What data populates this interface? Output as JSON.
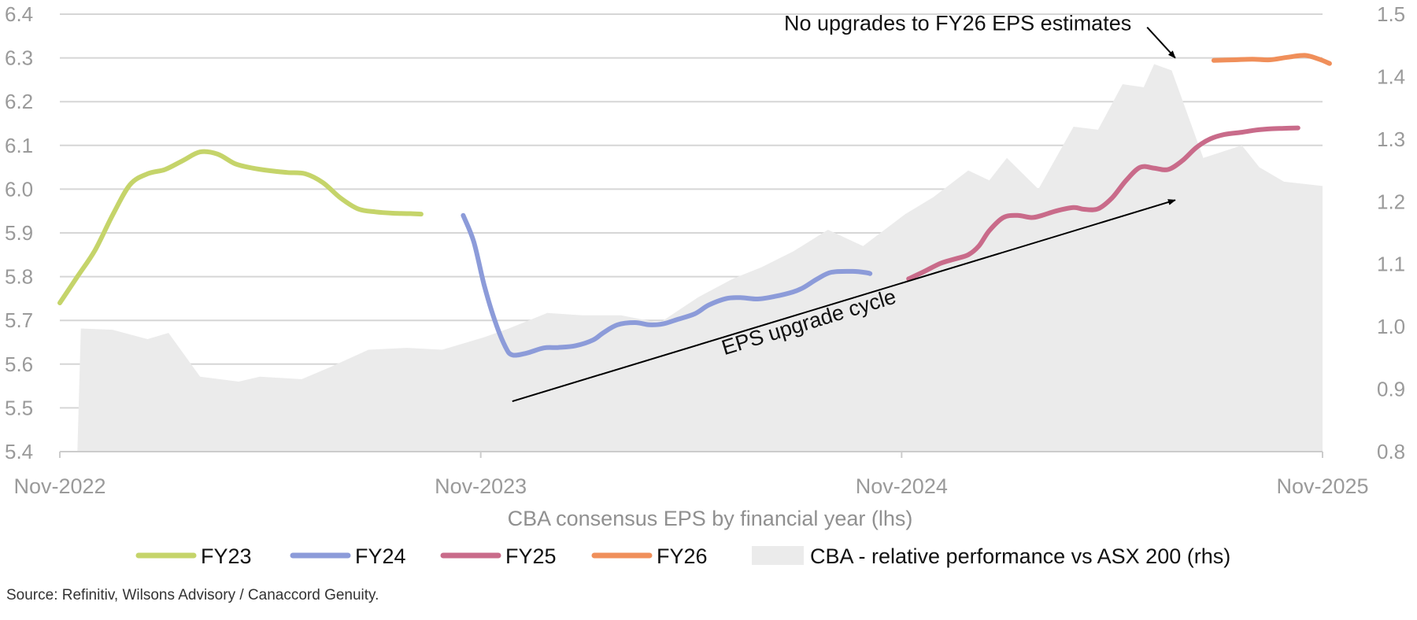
{
  "chart_data": {
    "type": "line",
    "title": "",
    "xlabel": "CBA consensus EPS by financial year (lhs)",
    "x_tick_labels": [
      "Nov-2022",
      "Nov-2023",
      "Nov-2024",
      "Nov-2025"
    ],
    "x_range_months": [
      0,
      36
    ],
    "y_left": {
      "range": [
        5.4,
        6.4
      ],
      "ticks": [
        "5.4",
        "5.5",
        "5.6",
        "5.7",
        "5.8",
        "5.9",
        "6.0",
        "6.1",
        "6.2",
        "6.3",
        "6.4"
      ]
    },
    "y_right": {
      "range": [
        0.8,
        1.5
      ],
      "ticks": [
        "0.8",
        "0.9",
        "1.0",
        "1.1",
        "1.2",
        "1.3",
        "1.4",
        "1.5"
      ]
    },
    "grid": true,
    "legend_position": "bottom",
    "series": [
      {
        "name": "FY23",
        "axis": "left",
        "color": "#c5d46a",
        "x": [
          0,
          0.5,
          1.0,
          1.5,
          2.0,
          2.5,
          3.0,
          3.5,
          4.0,
          4.5,
          5.0,
          5.5,
          6.0,
          6.5,
          7.0,
          7.5,
          8.0,
          8.5,
          9.0,
          9.5,
          10.0,
          10.3
        ],
        "values": [
          5.74,
          5.8,
          5.86,
          5.94,
          6.01,
          6.035,
          6.045,
          6.065,
          6.085,
          6.08,
          6.058,
          6.048,
          6.042,
          6.038,
          6.035,
          6.015,
          5.98,
          5.955,
          5.948,
          5.945,
          5.944,
          5.943
        ]
      },
      {
        "name": "FY24",
        "axis": "left",
        "color": "#8c9bd9",
        "x": [
          11.5,
          11.8,
          12.1,
          12.4,
          12.7,
          12.9,
          13.3,
          13.8,
          14.2,
          14.7,
          15.2,
          15.5,
          15.9,
          16.4,
          16.8,
          17.2,
          17.6,
          18.1,
          18.5,
          19.0,
          19.4,
          19.9,
          20.4,
          20.9,
          21.2,
          21.6,
          22.0,
          22.6,
          23.0,
          23.1
        ],
        "values": [
          5.94,
          5.88,
          5.78,
          5.7,
          5.64,
          5.621,
          5.625,
          5.637,
          5.638,
          5.642,
          5.655,
          5.672,
          5.69,
          5.695,
          5.69,
          5.692,
          5.702,
          5.715,
          5.735,
          5.75,
          5.752,
          5.749,
          5.755,
          5.765,
          5.775,
          5.795,
          5.81,
          5.812,
          5.809,
          5.807
        ]
      },
      {
        "name": "FY25",
        "axis": "left",
        "color": "#c96b8a",
        "x": [
          24.2,
          24.6,
          25.1,
          25.5,
          25.9,
          26.2,
          26.5,
          26.9,
          27.3,
          27.7,
          28.0,
          28.4,
          28.9,
          29.2,
          29.6,
          30.0,
          30.4,
          30.8,
          31.2,
          31.6,
          32.0,
          32.4,
          32.8,
          33.2,
          33.7,
          34.1,
          34.5,
          34.9,
          35.3
        ],
        "values": [
          5.795,
          5.81,
          5.83,
          5.84,
          5.85,
          5.87,
          5.905,
          5.935,
          5.94,
          5.935,
          5.94,
          5.95,
          5.958,
          5.954,
          5.955,
          5.98,
          6.02,
          6.05,
          6.048,
          6.045,
          6.065,
          6.095,
          6.115,
          6.125,
          6.13,
          6.135,
          6.138,
          6.139,
          6.14
        ]
      },
      {
        "name": "FY26",
        "axis": "right",
        "color": "#f08f5a",
        "x": [
          32.9,
          33.5,
          34.0,
          34.5,
          35.0,
          35.5,
          35.9,
          36.2
        ],
        "values": [
          1.426,
          1.427,
          1.428,
          1.427,
          1.431,
          1.434,
          1.428,
          1.421
        ]
      },
      {
        "name": "CBA - relative performance vs ASX 200 (rhs)",
        "axis": "right",
        "type": "area",
        "color": "#ebebeb",
        "x": [
          0.5,
          0.6,
          1.5,
          2.5,
          3.1,
          4.0,
          5.1,
          5.7,
          6.9,
          7.7,
          8.8,
          9.9,
          10.9,
          12.1,
          12.8,
          13.9,
          14.9,
          16.0,
          17.1,
          18.2,
          19.2,
          20.0,
          20.9,
          21.9,
          22.9,
          24.1,
          24.9,
          25.9,
          26.5,
          27.0,
          27.9,
          28.9,
          29.6,
          30.3,
          30.9,
          31.2,
          31.7,
          32.6,
          33.7,
          34.2,
          34.9,
          36.0
        ],
        "values": [
          0.8,
          0.997,
          0.995,
          0.98,
          0.99,
          0.92,
          0.912,
          0.92,
          0.916,
          0.935,
          0.963,
          0.966,
          0.963,
          0.983,
          0.997,
          1.022,
          1.018,
          1.018,
          1.006,
          1.047,
          1.077,
          1.095,
          1.12,
          1.155,
          1.129,
          1.18,
          1.207,
          1.25,
          1.234,
          1.27,
          1.22,
          1.32,
          1.315,
          1.388,
          1.383,
          1.42,
          1.41,
          1.27,
          1.29,
          1.255,
          1.232,
          1.225
        ]
      }
    ],
    "annotations": [
      {
        "text": "No upgrades to FY26 EPS estimates",
        "arrow_from_month": 31.0,
        "arrow_from_value": 6.37,
        "arrow_to_month": 31.8,
        "arrow_to_value": 6.3
      },
      {
        "text": "EPS upgrade cycle",
        "arrow_from_month": 12.9,
        "arrow_from_value": 5.515,
        "arrow_to_month": 31.8,
        "arrow_to_value": 5.975
      }
    ],
    "source": "Source: Refinitiv, Wilsons Advisory / Canaccord Genuity."
  }
}
